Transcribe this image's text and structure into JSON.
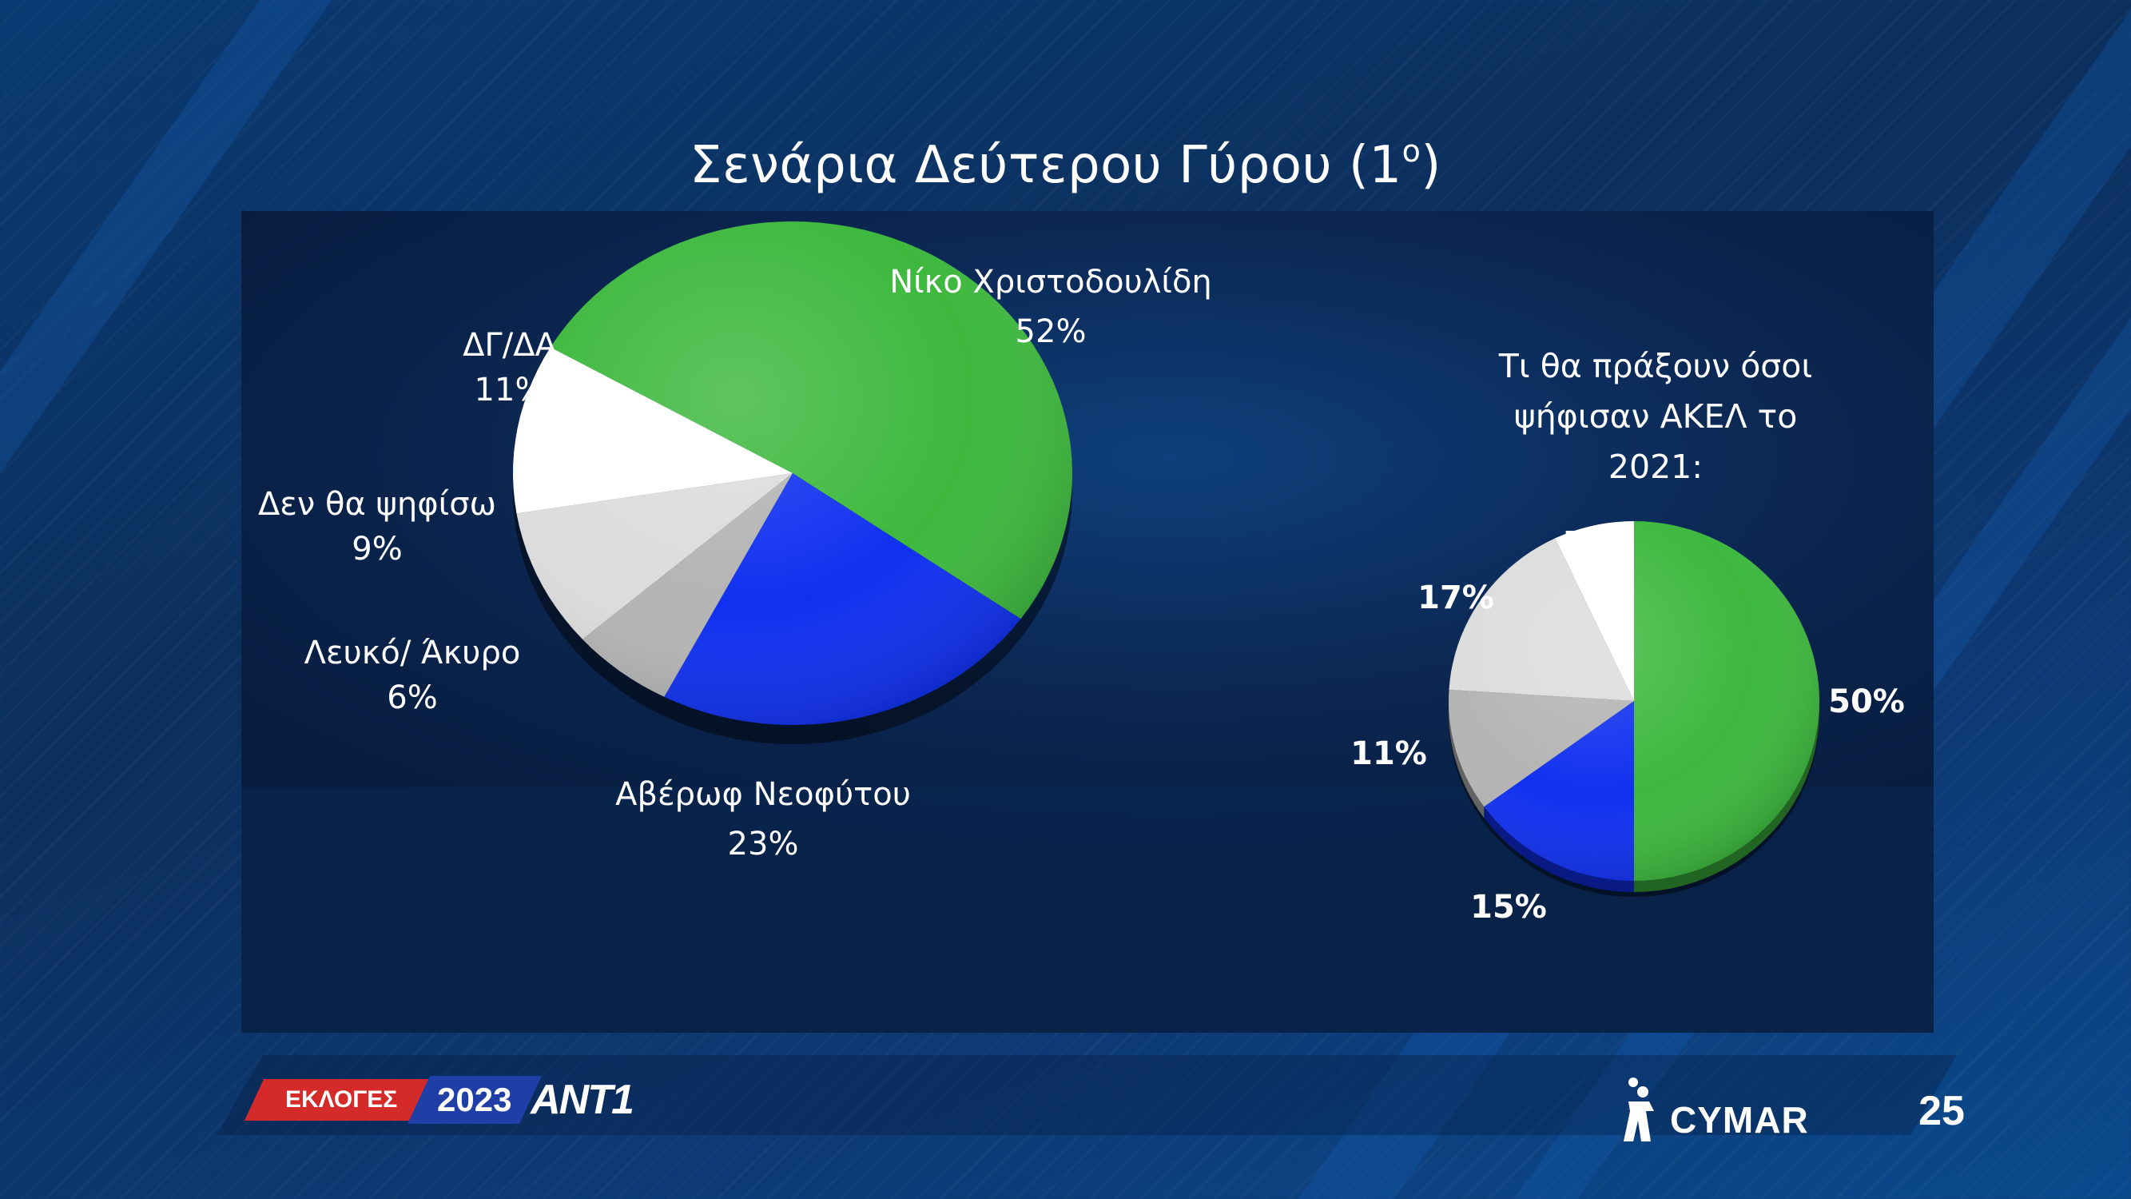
{
  "title": "Σενάρια Δεύτερου Γύρου (1",
  "title_superscript": "ο",
  "title_suffix": ")",
  "page_number": "25",
  "footer": {
    "left_logo": {
      "label": "ΕΚΛΟΓΕΣ",
      "year": "2023",
      "channel": "ANT1"
    },
    "right_logo": {
      "text": "CYMAR"
    }
  },
  "chart_data": [
    {
      "type": "pie",
      "style": "3d",
      "slices": [
        {
          "label": "Νίκο Χριστοδουλίδη",
          "value": 52,
          "display": "52%",
          "color": "#3db83d"
        },
        {
          "label": "Αβέρωφ Νεοφύτου",
          "value": 23,
          "display": "23%",
          "color": "#1030f0"
        },
        {
          "label": "Λευκό/ Άκυρο",
          "value": 6,
          "display": "6%",
          "color": "#b4b4b4"
        },
        {
          "label": "Δεν θα ψηφίσω",
          "value": 9,
          "display": "9%",
          "color": "#dcdcdc"
        },
        {
          "label": "ΔΓ/ΔΑ",
          "value": 11,
          "display": "11%",
          "color": "#ffffff"
        }
      ]
    },
    {
      "type": "pie",
      "style": "3d",
      "title_lines": [
        "Τι θα πράξουν όσοι",
        "ψήφισαν ΑΚΕΛ το",
        "2021:"
      ],
      "slices": [
        {
          "value": 50,
          "display": "50%",
          "color": "#3db83d"
        },
        {
          "value": 15,
          "display": "15%",
          "color": "#1030f0"
        },
        {
          "value": 11,
          "display": "11%",
          "color": "#b4b4b4"
        },
        {
          "value": 17,
          "display": "17%",
          "color": "#dcdcdc"
        },
        {
          "value": 7,
          "display": "7%",
          "color": "#ffffff"
        }
      ]
    }
  ]
}
